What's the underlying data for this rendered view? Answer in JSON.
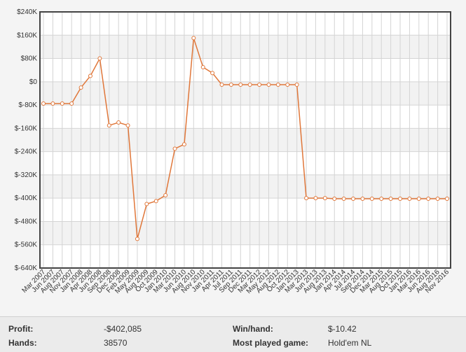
{
  "chart_data": {
    "type": "line",
    "categories": [
      "Mar 2007",
      "Jun 2007",
      "Aug 2007",
      "Nov 2007",
      "Jan 2008",
      "Apr 2008",
      "Jun 2008",
      "Sep 2008",
      "Dec 2008",
      "Feb 2009",
      "May 2009",
      "Aug 2009",
      "Oct 2009",
      "Jan 2010",
      "Mar 2010",
      "Jun 2010",
      "Aug 2010",
      "Nov 2010",
      "Jan 2011",
      "Apr 2011",
      "Jul 2011",
      "Sep 2011",
      "Dec 2011",
      "Mar 2012",
      "May 2012",
      "Aug 2012",
      "Oct 2012",
      "Jan 2013",
      "Mar 2013",
      "Jun 2013",
      "Aug 2013",
      "Jan 2014",
      "Apr 2014",
      "Jul 2014",
      "Sep 2014",
      "Dec 2014",
      "Mar 2015",
      "Aug 2015",
      "Oct 2015",
      "Jan 2016",
      "Mar 2016",
      "Jun 2016",
      "Aug 2016",
      "Nov 2016"
    ],
    "values": [
      -75,
      -75,
      -75,
      -75,
      -20,
      20,
      80,
      -150,
      -140,
      -150,
      -540,
      -420,
      -410,
      -390,
      -230,
      -215,
      150,
      50,
      30,
      -10,
      -10,
      -10,
      -10,
      -10,
      -10,
      -10,
      -10,
      -10,
      -400,
      -400,
      -400,
      -402,
      -402,
      -402,
      -402,
      -402,
      -402,
      -402,
      -402,
      -402,
      -402,
      -402,
      -402,
      -402
    ],
    "color": "#e0773a",
    "ylim": [
      -640,
      240
    ],
    "yticks": [
      {
        "value": 240,
        "label": "$240K"
      },
      {
        "value": 160,
        "label": "$160K"
      },
      {
        "value": 80,
        "label": "$80K"
      },
      {
        "value": 0,
        "label": "$0"
      },
      {
        "value": -80,
        "label": "$-80K"
      },
      {
        "value": -160,
        "label": "$-160K"
      },
      {
        "value": -240,
        "label": "$-240K"
      },
      {
        "value": -320,
        "label": "$-320K"
      },
      {
        "value": -400,
        "label": "$-400K"
      },
      {
        "value": -480,
        "label": "$-480K"
      },
      {
        "value": -560,
        "label": "$-560K"
      },
      {
        "value": -640,
        "label": "$-640K"
      }
    ],
    "grid": true
  },
  "stats": [
    {
      "label": "Profit:",
      "value": "-$402,085"
    },
    {
      "label": "Win/hand:",
      "value": "$-10.42"
    },
    {
      "label": "Hands:",
      "value": "38570"
    },
    {
      "label": "Most played game:",
      "value": "Hold'em NL"
    }
  ]
}
